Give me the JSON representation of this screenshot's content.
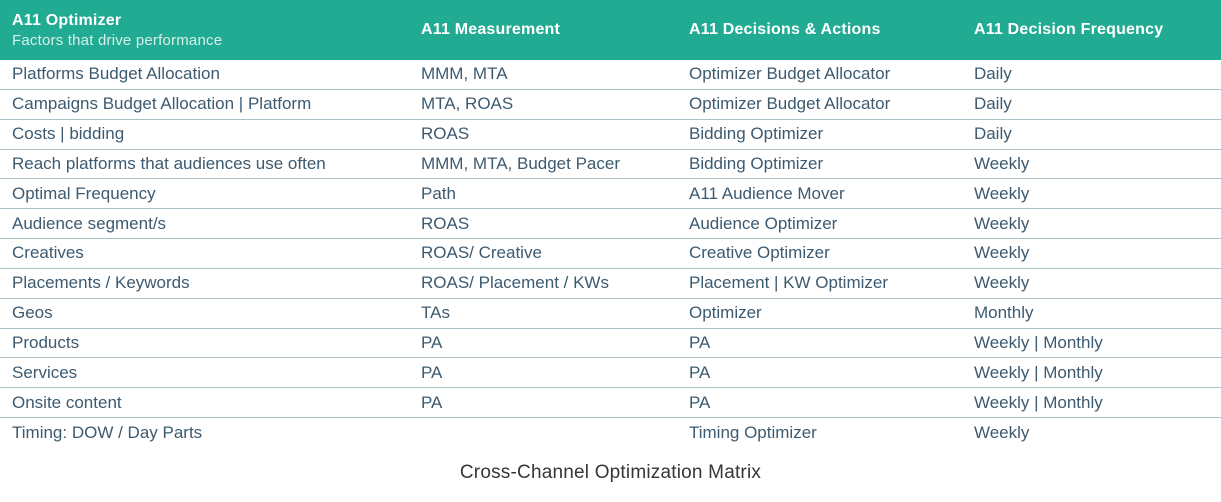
{
  "colors": {
    "header_bg": "#21AB92",
    "header_text": "#FFFFFF",
    "header_subtitle_text": "#D6EEE7",
    "body_text": "#3C5A70",
    "divider": "#AEBFC7",
    "caption_text": "#363636"
  },
  "table": {
    "header": {
      "col1_title": "A11 Optimizer",
      "col1_subtitle": "Factors that drive performance",
      "col2": "A11 Measurement",
      "col3": "A11 Decisions & Actions",
      "col4": "A11 Decision Frequency"
    },
    "rows": [
      {
        "factor": "Platforms Budget Allocation",
        "measurement": "MMM, MTA",
        "action": "Optimizer Budget Allocator",
        "frequency": "Daily"
      },
      {
        "factor": "Campaigns Budget Allocation | Platform",
        "measurement": "MTA, ROAS",
        "action": "Optimizer Budget Allocator",
        "frequency": "Daily"
      },
      {
        "factor": "Costs | bidding",
        "measurement": "ROAS",
        "action": "Bidding Optimizer",
        "frequency": "Daily"
      },
      {
        "factor": "Reach platforms that audiences use often",
        "measurement": "MMM, MTA, Budget Pacer",
        "action": "Bidding Optimizer",
        "frequency": "Weekly"
      },
      {
        "factor": "Optimal Frequency",
        "measurement": "Path",
        "action": "A11 Audience Mover",
        "frequency": "Weekly"
      },
      {
        "factor": "Audience segment/s",
        "measurement": "ROAS",
        "action": "Audience Optimizer",
        "frequency": "Weekly"
      },
      {
        "factor": "Creatives",
        "measurement": "ROAS/ Creative",
        "action": "Creative Optimizer",
        "frequency": "Weekly"
      },
      {
        "factor": "Placements / Keywords",
        "measurement": "ROAS/ Placement / KWs",
        "action": "Placement | KW Optimizer",
        "frequency": "Weekly"
      },
      {
        "factor": "Geos",
        "measurement": "TAs",
        "action": "Optimizer",
        "frequency": "Monthly"
      },
      {
        "factor": "Products",
        "measurement": "PA",
        "action": "PA",
        "frequency": "Weekly | Monthly"
      },
      {
        "factor": "Services",
        "measurement": "PA",
        "action": "PA",
        "frequency": "Weekly | Monthly"
      },
      {
        "factor": "Onsite content",
        "measurement": "PA",
        "action": "PA",
        "frequency": "Weekly | Monthly"
      },
      {
        "factor": "Timing: DOW / Day Parts",
        "measurement": "",
        "action": "Timing Optimizer",
        "frequency": "Weekly"
      }
    ],
    "caption": "Cross-Channel Optimization Matrix"
  }
}
